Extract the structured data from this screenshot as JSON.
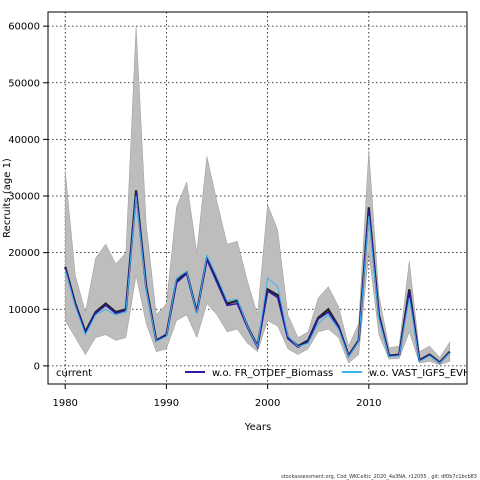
{
  "chart_data": {
    "type": "line",
    "xlabel": "Years",
    "ylabel": "Recruits (age 1)",
    "xlim": [
      1978.3,
      2019.7
    ],
    "ylim": [
      -3200,
      62500
    ],
    "x_ticks": [
      1980,
      1990,
      2000,
      2010
    ],
    "y_ticks": [
      0,
      10000,
      20000,
      30000,
      40000,
      50000,
      60000
    ],
    "grid": true,
    "legend_position": "bottom",
    "x": [
      1980,
      1981,
      1982,
      1983,
      1984,
      1985,
      1986,
      1987,
      1988,
      1989,
      1990,
      1991,
      1992,
      1993,
      1994,
      1995,
      1996,
      1997,
      1998,
      1999,
      2000,
      2001,
      2002,
      2003,
      2004,
      2005,
      2006,
      2007,
      2008,
      2009,
      2010,
      2011,
      2012,
      2013,
      2014,
      2015,
      2016,
      2017,
      2018
    ],
    "band": {
      "name": "current",
      "upper": [
        34500,
        16000,
        9500,
        19000,
        21500,
        18000,
        20000,
        60000,
        25000,
        9000,
        11000,
        28000,
        32500,
        20000,
        37000,
        29000,
        21500,
        22000,
        15000,
        9000,
        28500,
        24000,
        9000,
        5000,
        6000,
        12000,
        14000,
        10500,
        3500,
        7500,
        38000,
        12500,
        3200,
        3500,
        18500,
        2500,
        3500,
        1500,
        4200
      ],
      "lower": [
        8000,
        5000,
        2000,
        5000,
        5500,
        4500,
        5000,
        16000,
        7500,
        2500,
        3000,
        8000,
        9000,
        5000,
        11000,
        9000,
        6000,
        6500,
        4000,
        2500,
        8000,
        7000,
        3000,
        2000,
        3000,
        6000,
        6500,
        5000,
        500,
        2000,
        20000,
        5500,
        1200,
        1300,
        6000,
        500,
        800,
        200,
        800
      ]
    },
    "series": [
      {
        "name": "current",
        "color": "#222222",
        "values": [
          17500,
          11000,
          6000,
          9500,
          11000,
          9500,
          10000,
          31000,
          14000,
          4500,
          5500,
          15000,
          16500,
          9500,
          19000,
          15000,
          11000,
          11500,
          7000,
          3500,
          13500,
          12500,
          5000,
          3500,
          4500,
          8500,
          10000,
          7000,
          1800,
          4500,
          28000,
          9000,
          1800,
          2000,
          13500,
          1000,
          2000,
          600,
          2500
        ]
      },
      {
        "name": "w.o. FR_OTDEF_Biomass",
        "color": "#2a1aa6",
        "values": [
          17300,
          10800,
          5800,
          9300,
          10700,
          9300,
          9800,
          30500,
          13700,
          4400,
          5400,
          14700,
          16300,
          9400,
          18800,
          14700,
          10700,
          11000,
          6800,
          3300,
          13200,
          12100,
          4800,
          3300,
          4300,
          8300,
          9500,
          6900,
          1700,
          4400,
          27500,
          8800,
          1700,
          1900,
          13000,
          900,
          1900,
          500,
          2400
        ]
      },
      {
        "name": "w.o. VAST_IGFS_EVHOE_Biomass",
        "color": "#3eb2ee",
        "values": [
          17000,
          10500,
          5500,
          9000,
          10000,
          9000,
          9500,
          30000,
          13500,
          4300,
          5200,
          15500,
          16700,
          9200,
          19500,
          15700,
          11500,
          11800,
          7000,
          3400,
          15500,
          14000,
          5300,
          3400,
          4000,
          7500,
          9000,
          6500,
          1600,
          4300,
          26500,
          8300,
          1600,
          1800,
          12000,
          800,
          1800,
          500,
          2300
        ]
      }
    ]
  },
  "footer_text": "stockassessment.org, Cod_WKCeltic_2020_4a3NA, r12055 , git: df0b7c1bcb83"
}
